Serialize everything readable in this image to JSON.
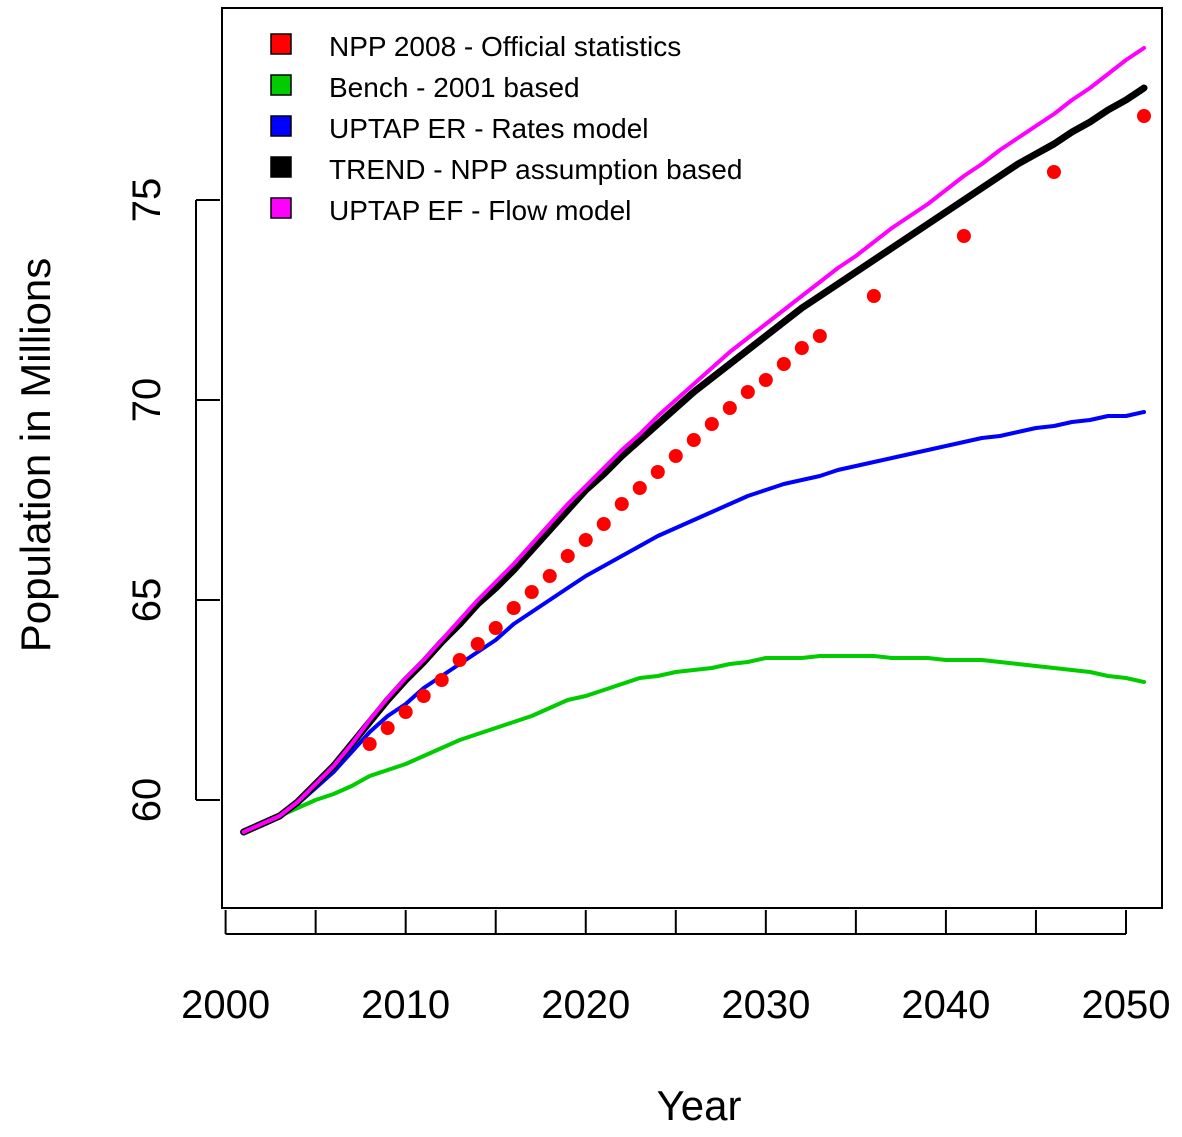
{
  "chart_data": {
    "type": "line",
    "title": "",
    "xlabel": "Year",
    "ylabel": "Population in Millions",
    "xlim": [
      1999.8,
      2052
    ],
    "ylim": [
      57.3,
      79.8
    ],
    "x_ticks": [
      2000,
      2010,
      2020,
      2030,
      2040,
      2050
    ],
    "y_ticks": [
      60,
      65,
      70,
      75
    ],
    "grid": false,
    "legend_position": "top-left",
    "series": [
      {
        "name": "NPP 2008 - Official statistics",
        "style": "points",
        "color": "#ff0000",
        "x": [
          2008,
          2009,
          2010,
          2011,
          2012,
          2013,
          2014,
          2015,
          2016,
          2017,
          2018,
          2019,
          2020,
          2021,
          2022,
          2023,
          2024,
          2025,
          2026,
          2027,
          2028,
          2029,
          2030,
          2031,
          2032,
          2033,
          2036,
          2041,
          2046,
          2051
        ],
        "y": [
          61.4,
          61.8,
          62.2,
          62.6,
          63.0,
          63.5,
          63.9,
          64.3,
          64.8,
          65.2,
          65.6,
          66.1,
          66.5,
          66.9,
          67.4,
          67.8,
          68.2,
          68.6,
          69.0,
          69.4,
          69.8,
          70.2,
          70.5,
          70.9,
          71.3,
          71.6,
          72.6,
          74.1,
          75.7,
          77.1
        ]
      },
      {
        "name": "Bench - 2001 based",
        "style": "line",
        "color": "#00cc00",
        "x": [
          2001,
          2002,
          2003,
          2004,
          2005,
          2006,
          2007,
          2008,
          2009,
          2010,
          2011,
          2012,
          2013,
          2014,
          2015,
          2016,
          2017,
          2018,
          2019,
          2020,
          2021,
          2022,
          2023,
          2024,
          2025,
          2026,
          2027,
          2028,
          2029,
          2030,
          2031,
          2032,
          2033,
          2034,
          2035,
          2036,
          2037,
          2038,
          2039,
          2040,
          2041,
          2042,
          2043,
          2044,
          2045,
          2046,
          2047,
          2048,
          2049,
          2050,
          2051
        ],
        "y": [
          59.2,
          59.4,
          59.6,
          59.8,
          60.0,
          60.15,
          60.35,
          60.6,
          60.75,
          60.9,
          61.1,
          61.3,
          61.5,
          61.65,
          61.8,
          61.95,
          62.1,
          62.3,
          62.5,
          62.6,
          62.75,
          62.9,
          63.05,
          63.1,
          63.2,
          63.25,
          63.3,
          63.4,
          63.45,
          63.55,
          63.55,
          63.55,
          63.6,
          63.6,
          63.6,
          63.6,
          63.55,
          63.55,
          63.55,
          63.5,
          63.5,
          63.5,
          63.45,
          63.4,
          63.35,
          63.3,
          63.25,
          63.2,
          63.1,
          63.05,
          62.95
        ]
      },
      {
        "name": "UPTAP ER - Rates model",
        "style": "line",
        "color": "#0000ff",
        "x": [
          2001,
          2002,
          2003,
          2004,
          2005,
          2006,
          2007,
          2008,
          2009,
          2010,
          2011,
          2012,
          2013,
          2014,
          2015,
          2016,
          2017,
          2018,
          2019,
          2020,
          2021,
          2022,
          2023,
          2024,
          2025,
          2026,
          2027,
          2028,
          2029,
          2030,
          2031,
          2032,
          2033,
          2034,
          2035,
          2036,
          2037,
          2038,
          2039,
          2040,
          2041,
          2042,
          2043,
          2044,
          2045,
          2046,
          2047,
          2048,
          2049,
          2050,
          2051
        ],
        "y": [
          59.2,
          59.4,
          59.6,
          59.9,
          60.3,
          60.7,
          61.2,
          61.7,
          62.1,
          62.4,
          62.8,
          63.1,
          63.4,
          63.7,
          64.0,
          64.4,
          64.7,
          65.0,
          65.3,
          65.6,
          65.85,
          66.1,
          66.35,
          66.6,
          66.8,
          67.0,
          67.2,
          67.4,
          67.6,
          67.75,
          67.9,
          68.0,
          68.1,
          68.25,
          68.35,
          68.45,
          68.55,
          68.65,
          68.75,
          68.85,
          68.95,
          69.05,
          69.1,
          69.2,
          69.3,
          69.35,
          69.45,
          69.5,
          69.6,
          69.6,
          69.7
        ]
      },
      {
        "name": "TREND - NPP assumption based",
        "style": "line",
        "color": "#000000",
        "x": [
          2001,
          2002,
          2003,
          2004,
          2005,
          2006,
          2007,
          2008,
          2009,
          2010,
          2011,
          2012,
          2013,
          2014,
          2015,
          2016,
          2017,
          2018,
          2019,
          2020,
          2021,
          2022,
          2023,
          2024,
          2025,
          2026,
          2027,
          2028,
          2029,
          2030,
          2031,
          2032,
          2033,
          2034,
          2035,
          2036,
          2037,
          2038,
          2039,
          2040,
          2041,
          2042,
          2043,
          2044,
          2045,
          2046,
          2047,
          2048,
          2049,
          2050,
          2051
        ],
        "y": [
          59.2,
          59.4,
          59.6,
          59.95,
          60.4,
          60.85,
          61.4,
          61.95,
          62.5,
          63.0,
          63.45,
          63.95,
          64.4,
          64.9,
          65.3,
          65.75,
          66.25,
          66.75,
          67.25,
          67.75,
          68.15,
          68.6,
          69.0,
          69.4,
          69.8,
          70.2,
          70.55,
          70.9,
          71.25,
          71.6,
          71.95,
          72.3,
          72.6,
          72.9,
          73.2,
          73.5,
          73.8,
          74.1,
          74.4,
          74.7,
          75.0,
          75.3,
          75.6,
          75.9,
          76.15,
          76.4,
          76.7,
          76.95,
          77.25,
          77.5,
          77.8
        ]
      },
      {
        "name": "UPTAP EF - Flow model",
        "style": "line",
        "color": "#ff00ff",
        "x": [
          2001,
          2002,
          2003,
          2004,
          2005,
          2006,
          2007,
          2008,
          2009,
          2010,
          2011,
          2012,
          2013,
          2014,
          2015,
          2016,
          2017,
          2018,
          2019,
          2020,
          2021,
          2022,
          2023,
          2024,
          2025,
          2026,
          2027,
          2028,
          2029,
          2030,
          2031,
          2032,
          2033,
          2034,
          2035,
          2036,
          2037,
          2038,
          2039,
          2040,
          2041,
          2042,
          2043,
          2044,
          2045,
          2046,
          2047,
          2048,
          2049,
          2050,
          2051
        ],
        "y": [
          59.2,
          59.4,
          59.6,
          59.95,
          60.4,
          60.85,
          61.4,
          62.0,
          62.55,
          63.05,
          63.5,
          64.0,
          64.5,
          65.0,
          65.45,
          65.9,
          66.4,
          66.9,
          67.4,
          67.85,
          68.3,
          68.75,
          69.15,
          69.6,
          70.0,
          70.4,
          70.8,
          71.2,
          71.55,
          71.9,
          72.25,
          72.6,
          72.95,
          73.3,
          73.6,
          73.95,
          74.3,
          74.6,
          74.9,
          75.25,
          75.6,
          75.9,
          76.25,
          76.55,
          76.85,
          77.15,
          77.5,
          77.8,
          78.15,
          78.5,
          78.8
        ]
      }
    ]
  }
}
